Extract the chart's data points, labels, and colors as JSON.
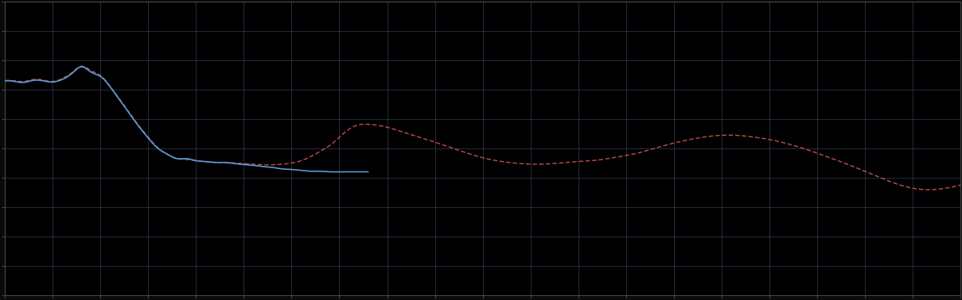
{
  "background_color": "#0a0a0a",
  "plot_bg_color": "#000000",
  "grid_color": "#3a3a5a",
  "line1_color": "#5b9bd5",
  "line2_color": "#c0504d",
  "figsize": [
    12.09,
    3.78
  ],
  "dpi": 100,
  "xlim": [
    0,
    100
  ],
  "ylim": [
    0,
    10
  ],
  "grid_nx": 20,
  "grid_ny": 10
}
